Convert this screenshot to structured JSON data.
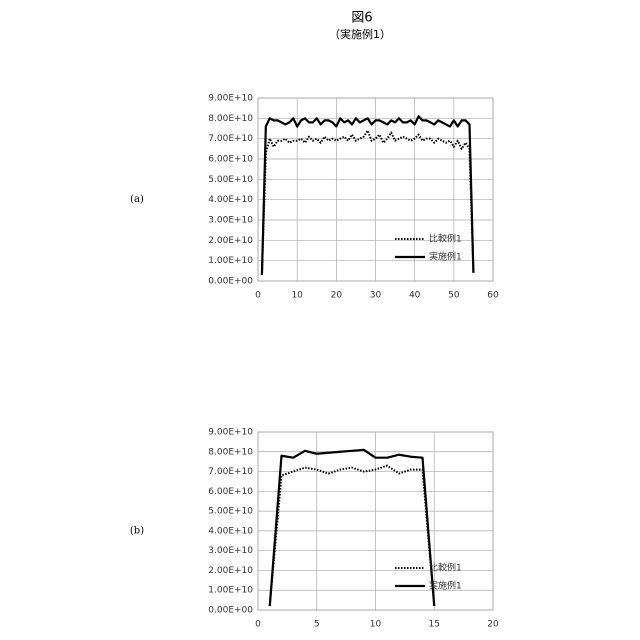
{
  "title": "図6",
  "subtitle": "（実施例1）",
  "chart_data": [
    {
      "type": "line",
      "label": "(a)",
      "x": [
        1,
        2,
        3,
        4,
        5,
        6,
        7,
        8,
        9,
        10,
        11,
        12,
        13,
        14,
        15,
        16,
        17,
        18,
        19,
        20,
        21,
        22,
        23,
        24,
        25,
        26,
        27,
        28,
        29,
        30,
        31,
        32,
        33,
        34,
        35,
        36,
        37,
        38,
        39,
        40,
        41,
        42,
        43,
        44,
        45,
        46,
        47,
        48,
        49,
        50,
        51,
        52,
        53,
        54,
        55
      ],
      "series": [
        {
          "name": "比較例1",
          "color": "#000000",
          "style": "dotted",
          "values": [
            3000000000.0,
            63000000000.0,
            70000000000.0,
            66000000000.0,
            69000000000.0,
            69000000000.0,
            70000000000.0,
            68000000000.0,
            69000000000.0,
            69000000000.0,
            70000000000.0,
            68000000000.0,
            71000000000.0,
            69000000000.0,
            70000000000.0,
            68000000000.0,
            71000000000.0,
            69000000000.0,
            70000000000.0,
            69000000000.0,
            70000000000.0,
            71000000000.0,
            69000000000.0,
            72000000000.0,
            69000000000.0,
            70000000000.0,
            71000000000.0,
            74000000000.0,
            69000000000.0,
            70000000000.0,
            72000000000.0,
            68000000000.0,
            70000000000.0,
            73000000000.0,
            69000000000.0,
            70000000000.0,
            71000000000.0,
            70000000000.0,
            69000000000.0,
            70000000000.0,
            72000000000.0,
            69000000000.0,
            70000000000.0,
            70000000000.0,
            68000000000.0,
            70000000000.0,
            69000000000.0,
            68000000000.0,
            69000000000.0,
            66000000000.0,
            69000000000.0,
            65000000000.0,
            68000000000.0,
            65000000000.0,
            4000000000.0
          ]
        },
        {
          "name": "実施例1",
          "color": "#000000",
          "style": "solid",
          "values": [
            3000000000.0,
            76000000000.0,
            80000000000.0,
            79000000000.0,
            79000000000.0,
            78000000000.0,
            77000000000.0,
            78000000000.0,
            80000000000.0,
            76000000000.0,
            79000000000.0,
            80000000000.0,
            78000000000.0,
            78000000000.0,
            80000000000.0,
            77000000000.0,
            79000000000.0,
            79000000000.0,
            78000000000.0,
            76000000000.0,
            80000000000.0,
            78000000000.0,
            79000000000.0,
            77000000000.0,
            80000000000.0,
            78000000000.0,
            79000000000.0,
            80000000000.0,
            77000000000.0,
            79000000000.0,
            79000000000.0,
            78000000000.0,
            77000000000.0,
            79000000000.0,
            78000000000.0,
            80000000000.0,
            78000000000.0,
            78000000000.0,
            79000000000.0,
            77000000000.0,
            81000000000.0,
            79000000000.0,
            79000000000.0,
            78000000000.0,
            77000000000.0,
            79000000000.0,
            78000000000.0,
            77000000000.0,
            76000000000.0,
            79000000000.0,
            76000000000.0,
            79000000000.0,
            79000000000.0,
            77000000000.0,
            4000000000.0
          ]
        }
      ],
      "xlim": [
        0,
        60
      ],
      "xticks": [
        0,
        10,
        20,
        30,
        40,
        50,
        60
      ],
      "ylim": [
        0,
        90000000000.0
      ],
      "yticks": [
        {
          "value": 0,
          "label": "0.00E+00"
        },
        {
          "value": 10000000000.0,
          "label": "1.00E+10"
        },
        {
          "value": 20000000000.0,
          "label": "2.00E+10"
        },
        {
          "value": 30000000000.0,
          "label": "3.00E+10"
        },
        {
          "value": 40000000000.0,
          "label": "4.00E+10"
        },
        {
          "value": 50000000000.0,
          "label": "5.00E+10"
        },
        {
          "value": 60000000000.0,
          "label": "6.00E+10"
        },
        {
          "value": 70000000000.0,
          "label": "7.00E+10"
        },
        {
          "value": 80000000000.0,
          "label": "8.00E+10"
        },
        {
          "value": 90000000000.0,
          "label": "9.00E+10"
        }
      ],
      "grid": true,
      "legend": "lower right"
    },
    {
      "type": "line",
      "label": "(b)",
      "x": [
        1,
        2,
        3,
        4,
        5,
        6,
        7,
        8,
        9,
        10,
        11,
        12,
        13,
        14,
        15
      ],
      "series": [
        {
          "name": "比較例1",
          "color": "#000000",
          "style": "dotted",
          "values": [
            2000000000.0,
            68000000000.0,
            70000000000.0,
            72000000000.0,
            71000000000.0,
            69000000000.0,
            71000000000.0,
            72000000000.0,
            70000000000.0,
            71000000000.0,
            73000000000.0,
            69000000000.0,
            71000000000.0,
            71000000000.0,
            2000000000.0
          ]
        },
        {
          "name": "実施例1",
          "color": "#000000",
          "style": "solid",
          "values": [
            2000000000.0,
            78000000000.0,
            77000000000.0,
            80500000000.0,
            79000000000.0,
            79500000000.0,
            80000000000.0,
            80500000000.0,
            81000000000.0,
            77000000000.0,
            77000000000.0,
            78500000000.0,
            77500000000.0,
            77000000000.0,
            2000000000.0
          ]
        }
      ],
      "xlim": [
        0,
        20
      ],
      "xticks": [
        0,
        5,
        10,
        15,
        20
      ],
      "ylim": [
        0,
        90000000000.0
      ],
      "yticks": [
        {
          "value": 0,
          "label": "0.00E+00"
        },
        {
          "value": 10000000000.0,
          "label": "1.00E+10"
        },
        {
          "value": 20000000000.0,
          "label": "2.00E+10"
        },
        {
          "value": 30000000000.0,
          "label": "3.00E+10"
        },
        {
          "value": 40000000000.0,
          "label": "4.00E+10"
        },
        {
          "value": 50000000000.0,
          "label": "5.00E+10"
        },
        {
          "value": 60000000000.0,
          "label": "6.00E+10"
        },
        {
          "value": 70000000000.0,
          "label": "7.00E+10"
        },
        {
          "value": 80000000000.0,
          "label": "8.00E+10"
        },
        {
          "value": 90000000000.0,
          "label": "9.00E+10"
        }
      ],
      "grid": true,
      "legend": "lower right"
    }
  ]
}
